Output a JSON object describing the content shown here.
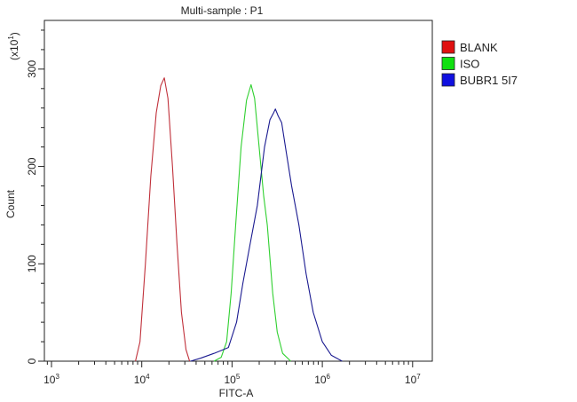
{
  "chart_data": {
    "type": "line",
    "title": "Multi-sample : P1",
    "xlabel": "FITC-A",
    "ylabel": "Count",
    "y_multiplier_label": "(x10",
    "y_multiplier_exp": "1",
    "y_multiplier_close": ")",
    "x_scale": "log",
    "xlim_log10": [
      2.92,
      7.22
    ],
    "ylim": [
      0,
      350
    ],
    "x_ticks": [
      {
        "base": "10",
        "exp": "3",
        "log10": 3
      },
      {
        "base": "10",
        "exp": "4",
        "log10": 4
      },
      {
        "base": "10",
        "exp": "5",
        "log10": 5
      },
      {
        "base": "10",
        "exp": "6",
        "log10": 6
      },
      {
        "base": "10",
        "exp": "7",
        "log10": 7
      }
    ],
    "y_ticks": [
      {
        "label": "0",
        "value": 0
      },
      {
        "label": "100",
        "value": 100
      },
      {
        "label": "200",
        "value": 200
      },
      {
        "label": "300",
        "value": 300
      }
    ],
    "legend_position": "right-top",
    "series": [
      {
        "name": "BLANK",
        "color": "#e01010",
        "line_color": "#c0303a",
        "points_log10x_count": [
          [
            3.93,
            0
          ],
          [
            3.98,
            20
          ],
          [
            4.04,
            100
          ],
          [
            4.1,
            190
          ],
          [
            4.16,
            255
          ],
          [
            4.21,
            283
          ],
          [
            4.25,
            291
          ],
          [
            4.29,
            270
          ],
          [
            4.34,
            200
          ],
          [
            4.39,
            120
          ],
          [
            4.44,
            50
          ],
          [
            4.49,
            12
          ],
          [
            4.53,
            0
          ]
        ]
      },
      {
        "name": "ISO",
        "color": "#10e010",
        "line_color": "#30d030",
        "points_log10x_count": [
          [
            4.8,
            0
          ],
          [
            4.88,
            4
          ],
          [
            4.94,
            20
          ],
          [
            4.99,
            70
          ],
          [
            5.04,
            140
          ],
          [
            5.1,
            220
          ],
          [
            5.16,
            268
          ],
          [
            5.21,
            284
          ],
          [
            5.25,
            270
          ],
          [
            5.3,
            220
          ],
          [
            5.35,
            170
          ],
          [
            5.39,
            140
          ],
          [
            5.45,
            70
          ],
          [
            5.5,
            30
          ],
          [
            5.56,
            8
          ],
          [
            5.65,
            0
          ]
        ]
      },
      {
        "name": "BUBR1 5I7",
        "color": "#1010e0",
        "line_color": "#1a1a90",
        "points_log10x_count": [
          [
            4.54,
            0
          ],
          [
            4.65,
            3
          ],
          [
            4.8,
            8
          ],
          [
            4.96,
            14
          ],
          [
            5.05,
            40
          ],
          [
            5.12,
            80
          ],
          [
            5.2,
            120
          ],
          [
            5.28,
            160
          ],
          [
            5.36,
            220
          ],
          [
            5.42,
            248
          ],
          [
            5.46,
            255
          ],
          [
            5.48,
            259
          ],
          [
            5.51,
            252
          ],
          [
            5.55,
            245
          ],
          [
            5.6,
            215
          ],
          [
            5.66,
            180
          ],
          [
            5.74,
            140
          ],
          [
            5.82,
            90
          ],
          [
            5.9,
            50
          ],
          [
            6.0,
            20
          ],
          [
            6.1,
            6
          ],
          [
            6.22,
            0
          ]
        ]
      }
    ]
  }
}
